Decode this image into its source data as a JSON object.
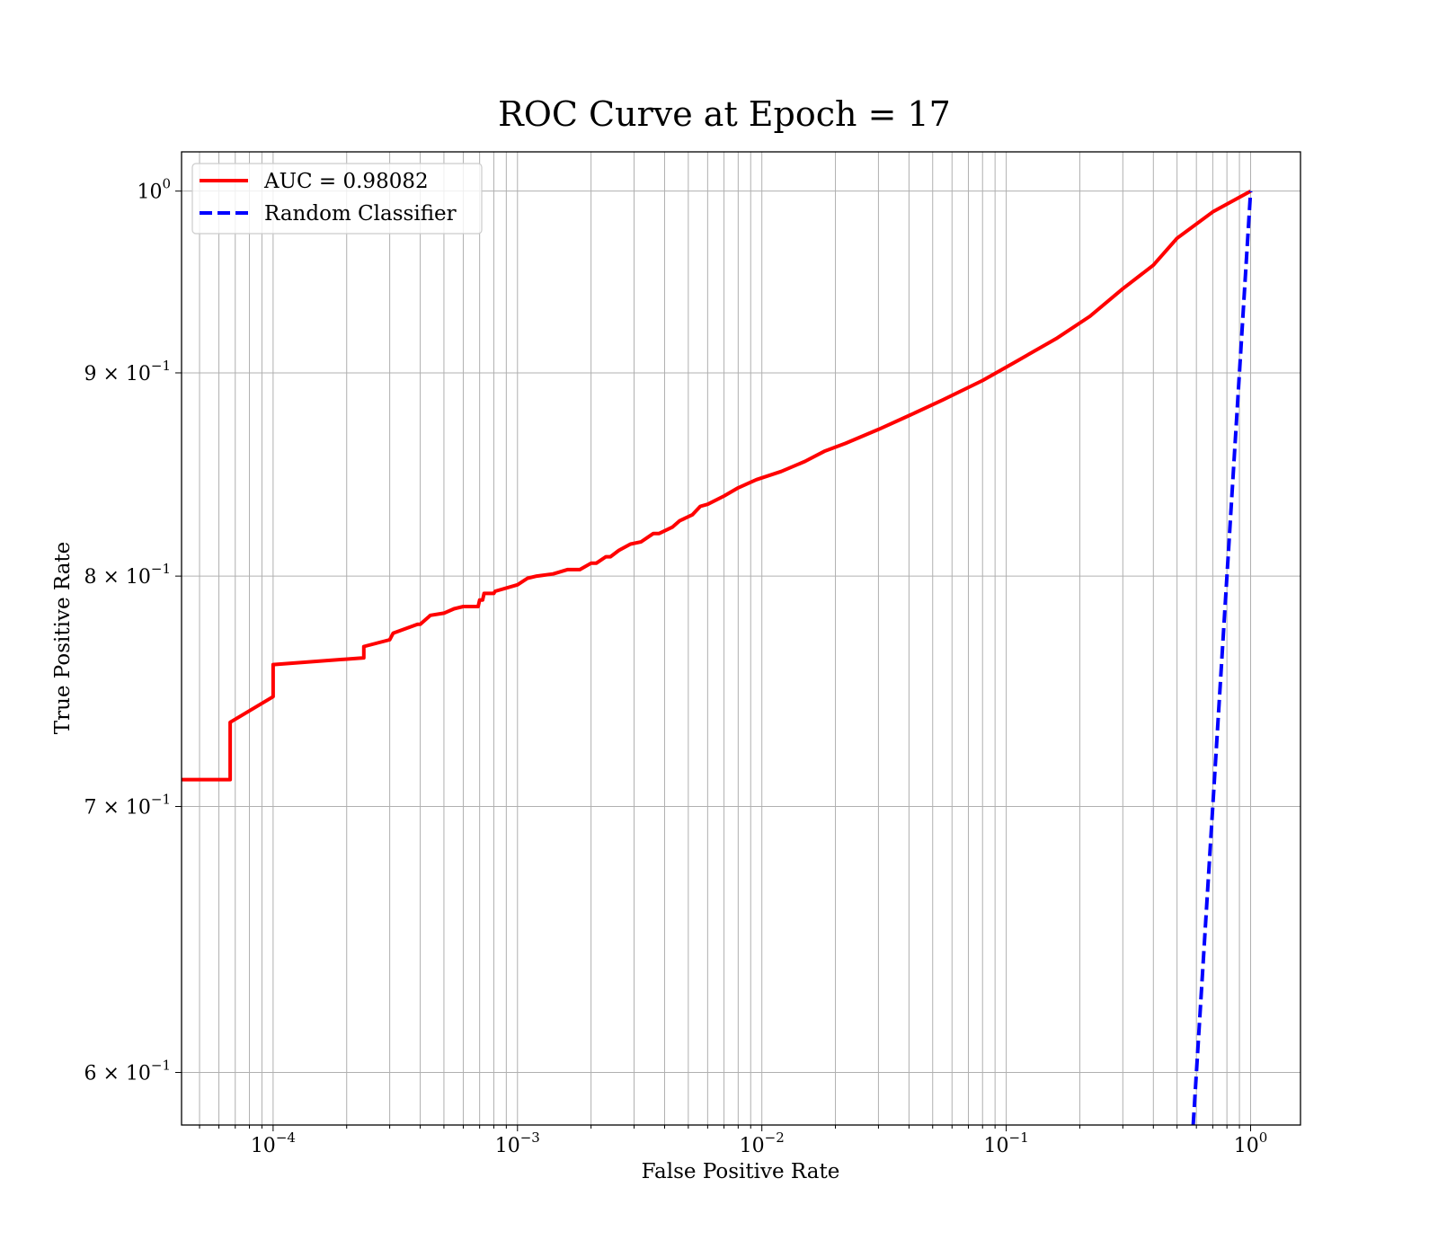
{
  "chart_data": {
    "type": "line",
    "title": "ROC Curve at Epoch = 17",
    "xlabel": "False Positive Rate",
    "ylabel": "True Positive Rate",
    "xscale": "log",
    "yscale": "log",
    "xlim": [
      4.22e-05,
      1.6
    ],
    "ylim": [
      0.582,
      1.023
    ],
    "grid": true,
    "grid_which": "both",
    "legend_position": "top-left",
    "x_ticks": [
      {
        "value": 0.0001,
        "base": "10",
        "exp": "−4"
      },
      {
        "value": 0.001,
        "base": "10",
        "exp": "−3"
      },
      {
        "value": 0.01,
        "base": "10",
        "exp": "−2"
      },
      {
        "value": 0.1,
        "base": "10",
        "exp": "−1"
      },
      {
        "value": 1,
        "base": "10",
        "exp": "0"
      }
    ],
    "y_ticks": [
      {
        "value": 0.6,
        "base": "6 × 10",
        "exp": "−1"
      },
      {
        "value": 0.7,
        "base": "7 × 10",
        "exp": "−1"
      },
      {
        "value": 0.8,
        "base": "8 × 10",
        "exp": "−1"
      },
      {
        "value": 0.9,
        "base": "9 × 10",
        "exp": "−1"
      },
      {
        "value": 1.0,
        "base": "10",
        "exp": "0"
      }
    ],
    "series": [
      {
        "name": "AUC = 0.98082",
        "color": "#ff0000",
        "style": "solid",
        "x": [
          4.22e-05,
          6.67e-05,
          6.67e-05,
          0.0001,
          0.0001,
          0.000235,
          0.000235,
          0.0003,
          0.00031,
          0.00039,
          0.0004,
          0.00043,
          0.00044,
          0.0005,
          0.00055,
          0.0006,
          0.00069,
          0.0007,
          0.00072,
          0.00073,
          0.0008,
          0.00081,
          0.001,
          0.0011,
          0.0012,
          0.0014,
          0.0016,
          0.0018,
          0.002,
          0.0021,
          0.0023,
          0.0024,
          0.0026,
          0.0029,
          0.0032,
          0.0036,
          0.0038,
          0.0043,
          0.0046,
          0.0052,
          0.0056,
          0.006,
          0.007,
          0.008,
          0.0095,
          0.012,
          0.015,
          0.018,
          0.022,
          0.03,
          0.04,
          0.055,
          0.08,
          0.11,
          0.16,
          0.22,
          0.3,
          0.4,
          0.5,
          0.7,
          1.0
        ],
        "y": [
          0.711,
          0.711,
          0.735,
          0.746,
          0.76,
          0.763,
          0.768,
          0.771,
          0.774,
          0.778,
          0.778,
          0.781,
          0.782,
          0.783,
          0.785,
          0.786,
          0.786,
          0.789,
          0.789,
          0.792,
          0.792,
          0.793,
          0.796,
          0.799,
          0.8,
          0.801,
          0.803,
          0.803,
          0.806,
          0.806,
          0.809,
          0.809,
          0.812,
          0.815,
          0.816,
          0.82,
          0.82,
          0.823,
          0.826,
          0.829,
          0.833,
          0.834,
          0.838,
          0.842,
          0.846,
          0.85,
          0.855,
          0.86,
          0.864,
          0.871,
          0.878,
          0.886,
          0.896,
          0.906,
          0.918,
          0.93,
          0.945,
          0.958,
          0.973,
          0.988,
          1.0
        ]
      },
      {
        "name": "Random Classifier",
        "color": "#0000ff",
        "style": "dashed",
        "x": [
          0.0,
          1.0
        ],
        "y": [
          0.0,
          1.0
        ]
      }
    ]
  }
}
